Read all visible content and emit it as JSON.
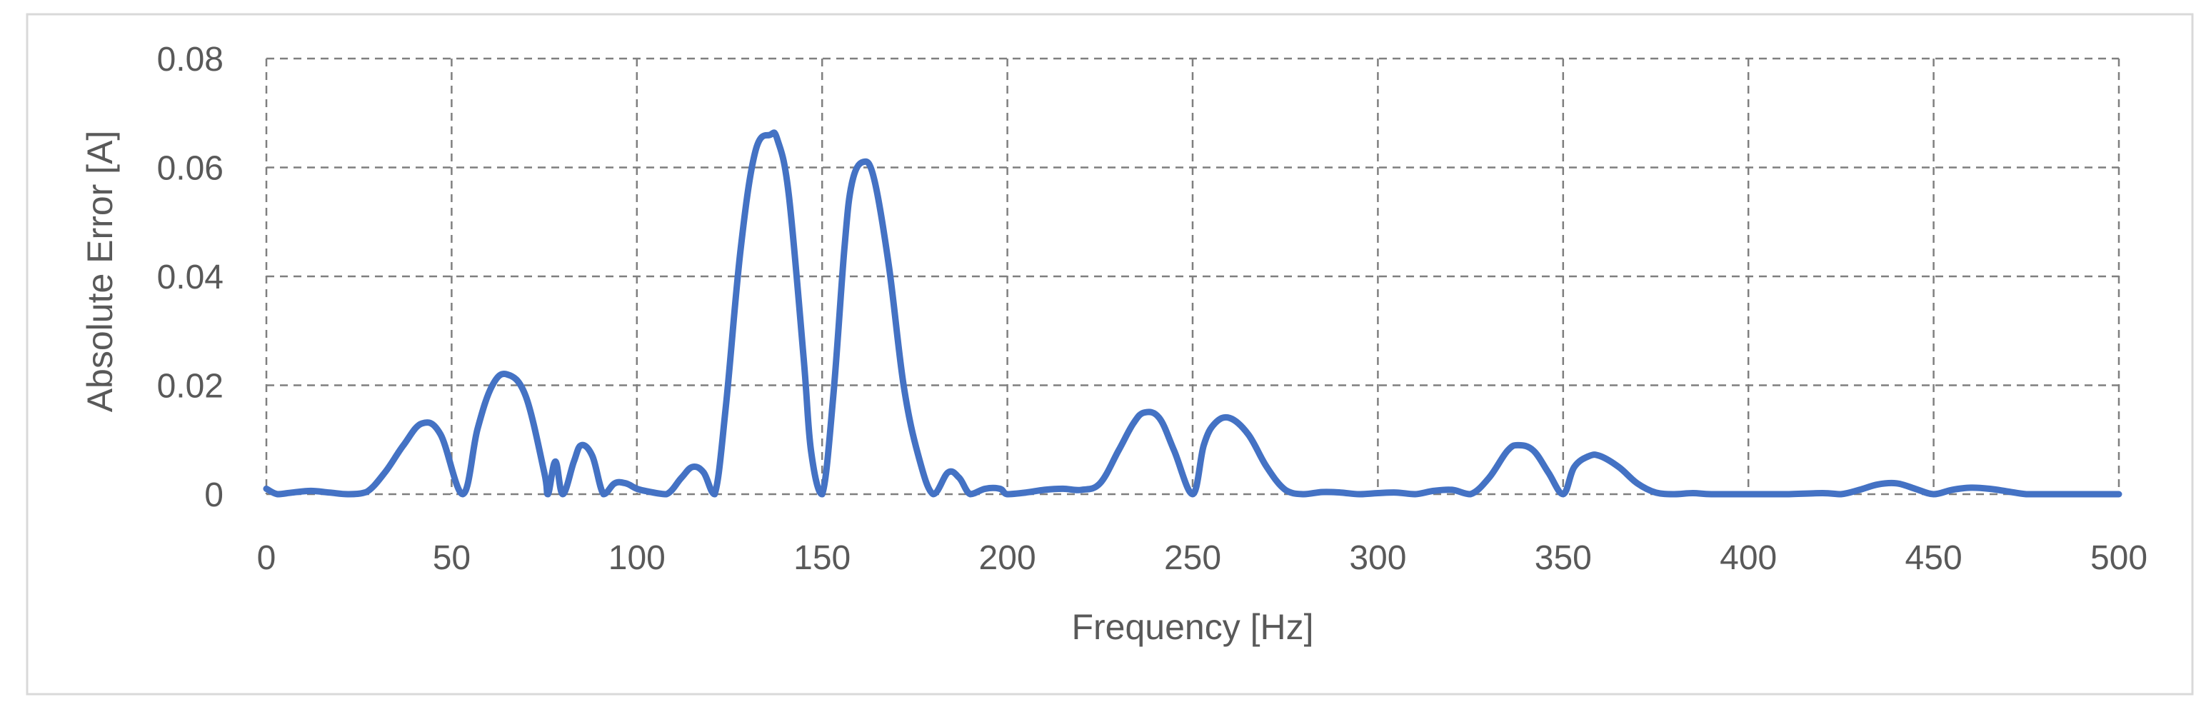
{
  "chart_data": {
    "type": "line",
    "title": "",
    "xlabel": "Frequency [Hz]",
    "ylabel": "Absolute Error [A]",
    "xlim": [
      0,
      500
    ],
    "ylim": [
      0,
      0.08
    ],
    "x_ticks": [
      "0",
      "50",
      "100",
      "150",
      "200",
      "250",
      "300",
      "350",
      "400",
      "450",
      "500"
    ],
    "y_ticks": [
      "0",
      "0.02",
      "0.04",
      "0.06",
      "0.08"
    ],
    "grid": true,
    "grid_style": "dashed",
    "legend": "none",
    "series": [
      {
        "color": "#4472C4",
        "x": [
          0,
          3,
          7,
          12,
          17,
          22,
          27,
          32,
          37,
          42,
          47,
          53,
          57,
          61,
          65,
          70,
          75,
          76,
          78,
          80,
          83,
          85,
          88,
          91,
          94,
          97,
          100,
          103,
          108,
          112,
          115,
          118,
          121,
          124,
          128,
          132,
          136,
          138,
          141,
          145,
          147,
          150,
          153,
          156,
          158,
          161,
          164,
          168,
          172,
          176,
          180,
          184,
          187,
          190,
          194,
          198,
          200,
          205,
          210,
          215,
          220,
          225,
          230,
          234,
          237,
          241,
          245,
          250,
          253,
          256,
          260,
          265,
          270,
          275,
          280,
          285,
          290,
          295,
          300,
          305,
          310,
          315,
          320,
          325,
          330,
          335,
          338,
          342,
          346,
          350,
          353,
          357,
          360,
          365,
          370,
          375,
          380,
          385,
          390,
          400,
          410,
          420,
          425,
          430,
          435,
          440,
          445,
          450,
          455,
          460,
          465,
          470,
          475,
          480,
          490,
          500
        ],
        "y": [
          0.001,
          0.0,
          0.0003,
          0.0006,
          0.0003,
          0.0,
          0.0004,
          0.004,
          0.009,
          0.013,
          0.011,
          0.0,
          0.012,
          0.02,
          0.022,
          0.018,
          0.004,
          0.0,
          0.006,
          0.0,
          0.006,
          0.009,
          0.007,
          0.0,
          0.002,
          0.002,
          0.001,
          0.0005,
          0.0,
          0.003,
          0.005,
          0.004,
          0.0,
          0.016,
          0.045,
          0.063,
          0.066,
          0.065,
          0.055,
          0.025,
          0.008,
          0.0,
          0.018,
          0.045,
          0.057,
          0.061,
          0.058,
          0.042,
          0.02,
          0.007,
          0.0,
          0.004,
          0.003,
          0.0,
          0.001,
          0.001,
          0.0,
          0.0003,
          0.0008,
          0.001,
          0.0008,
          0.002,
          0.008,
          0.013,
          0.015,
          0.014,
          0.008,
          0.0,
          0.009,
          0.013,
          0.014,
          0.011,
          0.005,
          0.0008,
          0.0,
          0.0004,
          0.0003,
          0.0,
          0.0002,
          0.0003,
          0.0,
          0.0006,
          0.0008,
          0.0,
          0.003,
          0.008,
          0.009,
          0.008,
          0.004,
          0.0,
          0.005,
          0.007,
          0.007,
          0.005,
          0.002,
          0.0003,
          0.0,
          0.0002,
          0.0,
          0.0,
          0.0,
          0.0002,
          0.0,
          0.0008,
          0.0018,
          0.002,
          0.001,
          0.0,
          0.0008,
          0.0012,
          0.001,
          0.0005,
          0.0,
          0.0,
          0.0,
          0.0
        ]
      }
    ]
  }
}
